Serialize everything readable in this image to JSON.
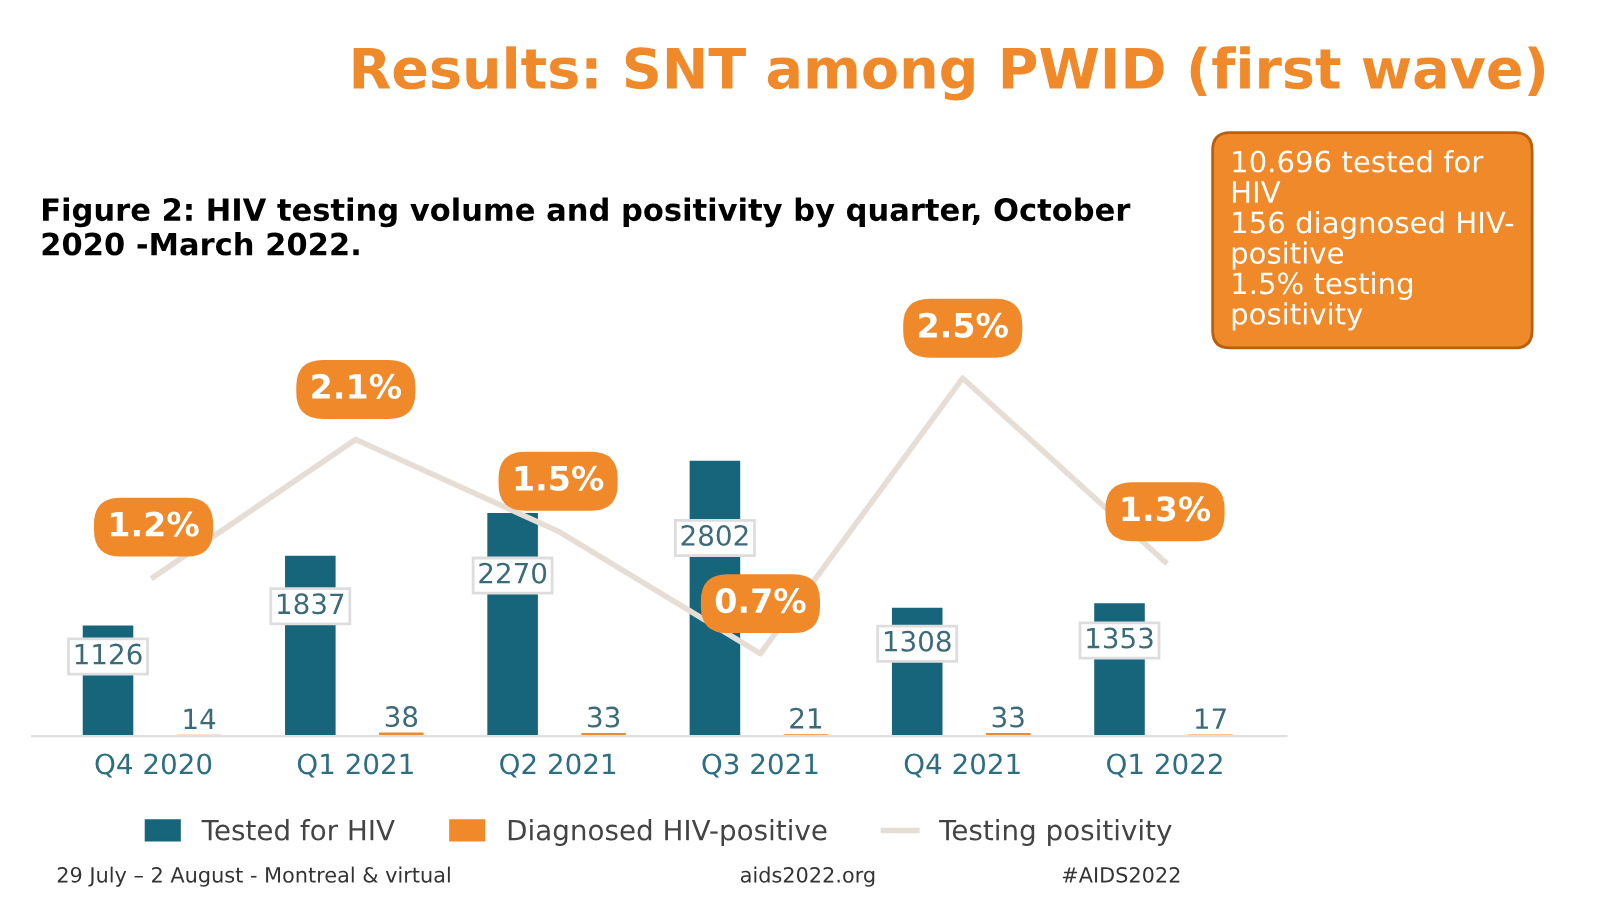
{
  "chart_data": {
    "type": "bar",
    "title": "Results: SNT among PWID (first wave)",
    "subtitle": "Figure 2: HIV testing volume and positivity by quarter, October\n2020 -March 2022.",
    "categories": [
      "Q4 2020",
      "Q1 2021",
      "Q2 2021",
      "Q3 2021",
      "Q4 2021",
      "Q1 2022"
    ],
    "series": [
      {
        "name": "Tested for HIV",
        "color": "#17657a",
        "values": [
          1126,
          1837,
          2270,
          2802,
          1308,
          1353
        ]
      },
      {
        "name": "Diagnosed HIV-positive",
        "color": "#f0892a",
        "values": [
          14,
          38,
          33,
          21,
          33,
          17
        ]
      },
      {
        "name": "Testing positivity",
        "type": "line",
        "axis": "y2",
        "color": "#e6ddd5",
        "values": [
          1.2,
          2.1,
          1.5,
          0.7,
          2.5,
          1.3
        ],
        "value_labels": [
          "1.2%",
          "2.1%",
          "1.5%",
          "0.7%",
          "2.5%",
          "1.3%"
        ]
      }
    ],
    "data_labels": true,
    "legend": "bottom",
    "grid": false,
    "annotations": [
      "10.696 tested for\nHIV\n156 diagnosed HIV-\npositive\n1.5% testing\npositivity",
      "29 July – 2 August - Montreal & virtual",
      "aids2022.org",
      "#AIDS2022"
    ]
  }
}
